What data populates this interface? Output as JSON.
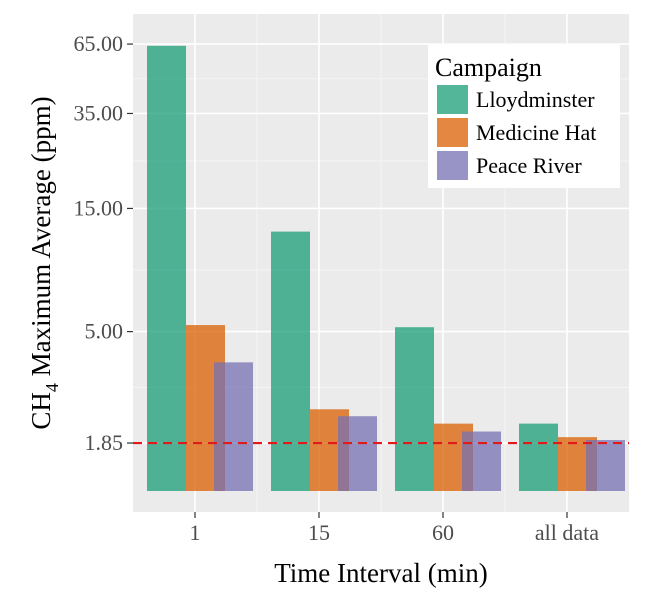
{
  "chart_data": {
    "type": "bar",
    "xlabel": "Time Interval (min)",
    "ylabel": {
      "main": "CH",
      "sub": "4",
      "rest": " Maximum Average (ppm)"
    },
    "y_scale": "log",
    "y_ticks": [
      {
        "value": 1.85,
        "label": "1.85"
      },
      {
        "value": 5,
        "label": "5.00"
      },
      {
        "value": 15,
        "label": "15.00"
      },
      {
        "value": 35,
        "label": "35.00"
      },
      {
        "value": 65,
        "label": "65.00"
      }
    ],
    "ylim": [
      1.0,
      85
    ],
    "categories": [
      "1",
      "15",
      "60",
      "all data"
    ],
    "series": [
      {
        "name": "Lloydminster",
        "color": "#1b9e77",
        "values": [
          64,
          12.2,
          5.2,
          2.2
        ]
      },
      {
        "name": "Medicine Hat",
        "color": "#d95f02",
        "values": [
          5.3,
          2.5,
          2.2,
          1.95
        ]
      },
      {
        "name": "Peace River",
        "color": "#7570b3",
        "values": [
          3.8,
          2.35,
          2.05,
          1.9
        ]
      }
    ],
    "reference_line": {
      "value": 1.85,
      "color": "#e31a1c",
      "style": "dashed"
    },
    "legend": {
      "title": "Campaign",
      "position": "top-right"
    },
    "grid": true
  }
}
